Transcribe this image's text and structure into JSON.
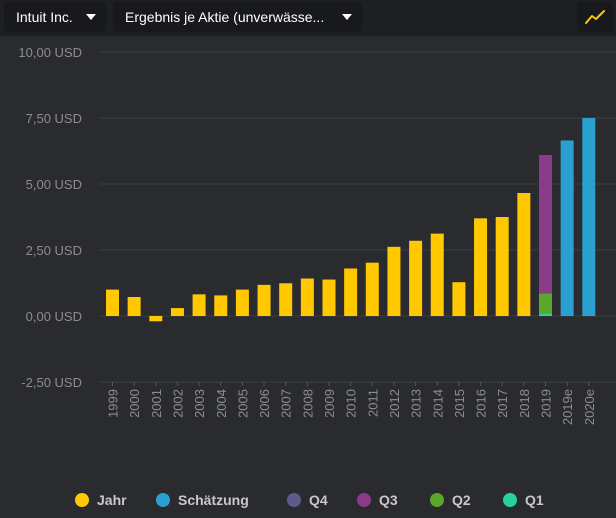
{
  "toolbar": {
    "company_label": "Intuit Inc.",
    "metric_label": "Ergebnis je Aktie (unverwässe...",
    "chart_type_icon": "line-chart-icon"
  },
  "colors": {
    "year": "#ffc800",
    "estimate": "#2aa0d0",
    "q4": "#5f5a8a",
    "q3": "#8a3b8a",
    "q2": "#5aa82a",
    "q1": "#28d2a0"
  },
  "legend": [
    {
      "label": "Jahr",
      "key": "year"
    },
    {
      "label": "Schätzung",
      "key": "estimate"
    },
    {
      "label": "Q4",
      "key": "q4"
    },
    {
      "label": "Q3",
      "key": "q3"
    },
    {
      "label": "Q2",
      "key": "q2"
    },
    {
      "label": "Q1",
      "key": "q1"
    }
  ],
  "chart_data": {
    "type": "bar",
    "ylim": [
      -2.5,
      10
    ],
    "yticks": [
      {
        "value": 10,
        "label": "10,00 USD"
      },
      {
        "value": 7.5,
        "label": "7,50 USD"
      },
      {
        "value": 5,
        "label": "5,00 USD"
      },
      {
        "value": 2.5,
        "label": "2,50 USD"
      },
      {
        "value": 0,
        "label": "0,00 USD"
      },
      {
        "value": -2.5,
        "label": "-2,50 USD"
      }
    ],
    "categories": [
      "1999",
      "2000",
      "2001",
      "2002",
      "2003",
      "2004",
      "2005",
      "2006",
      "2007",
      "2008",
      "2009",
      "2010",
      "2011",
      "2012",
      "2013",
      "2014",
      "2015",
      "2016",
      "2017",
      "2018",
      "2019",
      "2019e",
      "2020e"
    ],
    "bars": [
      {
        "category": "1999",
        "series": "year",
        "value": 1.0
      },
      {
        "category": "2000",
        "series": "year",
        "value": 0.72
      },
      {
        "category": "2001",
        "series": "year",
        "value": -0.2
      },
      {
        "category": "2002",
        "series": "year",
        "value": 0.3
      },
      {
        "category": "2003",
        "series": "year",
        "value": 0.82
      },
      {
        "category": "2004",
        "series": "year",
        "value": 0.78
      },
      {
        "category": "2005",
        "series": "year",
        "value": 1.0
      },
      {
        "category": "2006",
        "series": "year",
        "value": 1.18
      },
      {
        "category": "2007",
        "series": "year",
        "value": 1.24
      },
      {
        "category": "2008",
        "series": "year",
        "value": 1.42
      },
      {
        "category": "2009",
        "series": "year",
        "value": 1.38
      },
      {
        "category": "2010",
        "series": "year",
        "value": 1.8
      },
      {
        "category": "2011",
        "series": "year",
        "value": 2.02
      },
      {
        "category": "2012",
        "series": "year",
        "value": 2.62
      },
      {
        "category": "2013",
        "series": "year",
        "value": 2.85
      },
      {
        "category": "2014",
        "series": "year",
        "value": 3.12
      },
      {
        "category": "2015",
        "series": "year",
        "value": 1.28
      },
      {
        "category": "2016",
        "series": "year",
        "value": 3.7
      },
      {
        "category": "2017",
        "series": "year",
        "value": 3.75
      },
      {
        "category": "2018",
        "series": "year",
        "value": 4.66
      },
      {
        "category": "2019",
        "stack": [
          {
            "series": "q1",
            "value": 0.1
          },
          {
            "series": "q2",
            "value": 0.75
          },
          {
            "series": "q3",
            "value": 5.25
          }
        ]
      },
      {
        "category": "2019e",
        "series": "estimate",
        "value": 6.65
      },
      {
        "category": "2020e",
        "series": "estimate",
        "value": 7.5
      }
    ]
  }
}
